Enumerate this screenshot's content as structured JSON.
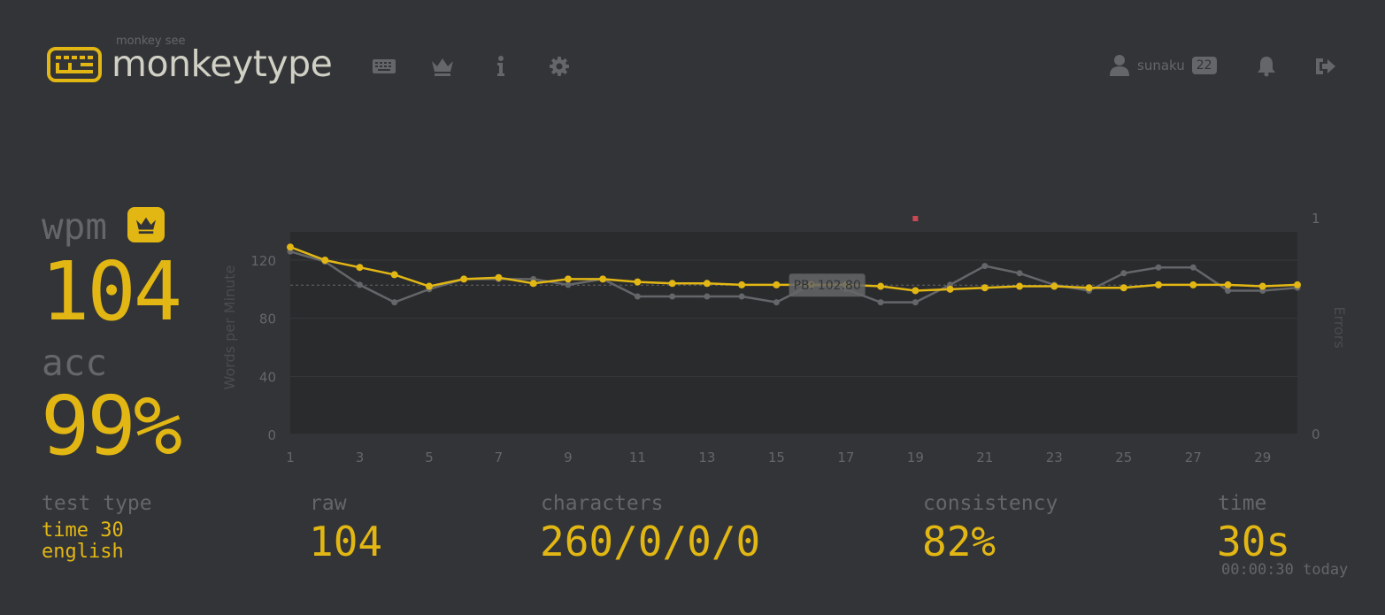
{
  "header": {
    "logo_small": "monkey see",
    "logo_text": "monkeytype",
    "nav": [
      "keyboard-icon",
      "crown-icon",
      "info-icon",
      "gear-icon"
    ],
    "account": {
      "name": "sunaku",
      "level": "22"
    },
    "bell_icon": "bell-icon",
    "logout_icon": "sign-out-icon"
  },
  "result": {
    "wpm_label": "wpm",
    "wpm_value": "104",
    "acc_label": "acc",
    "acc_value": "99%",
    "test_type_label": "test type",
    "test_type_mode": "time 30",
    "test_type_language": "english",
    "raw_label": "raw",
    "raw_value": "104",
    "characters_label": "characters",
    "characters_value": "260/0/0/0",
    "consistency_label": "consistency",
    "consistency_value": "82%",
    "time_label": "time",
    "time_value": "30s",
    "time_note": "00:00:30 today"
  },
  "colors": {
    "bg": "#323437",
    "main": "#e2b714",
    "sub": "#646669",
    "text": "#d1d0c5",
    "error": "#ca4754"
  },
  "chart_data": {
    "type": "line",
    "x": [
      1,
      2,
      3,
      4,
      5,
      6,
      7,
      8,
      9,
      10,
      11,
      12,
      13,
      14,
      15,
      16,
      17,
      18,
      19,
      20,
      21,
      22,
      23,
      24,
      25,
      26,
      27,
      28,
      29,
      30
    ],
    "xticks": [
      1,
      3,
      5,
      7,
      9,
      11,
      13,
      15,
      17,
      19,
      21,
      23,
      25,
      27,
      29
    ],
    "xlim": [
      1,
      30
    ],
    "ylabel": "Words per Minute",
    "ylim": [
      0,
      120
    ],
    "yticks": [
      0,
      40,
      80,
      120
    ],
    "y2label": "Errors",
    "y2ticks": [
      0,
      1
    ],
    "series": [
      {
        "name": "wpm",
        "color": "#e2b714",
        "values": [
          129,
          120,
          115,
          110,
          102,
          107,
          108,
          104,
          107,
          107,
          105,
          104,
          104,
          103,
          103,
          103,
          103,
          102,
          99,
          100,
          101,
          102,
          102,
          101,
          101,
          103,
          103,
          103,
          102,
          103
        ]
      },
      {
        "name": "raw",
        "color": "#646669",
        "values": [
          126,
          119,
          103,
          91,
          100,
          107,
          107,
          107,
          103,
          107,
          95,
          95,
          95,
          95,
          91,
          103,
          100,
          91,
          91,
          103,
          116,
          111,
          103,
          99,
          111,
          115,
          115,
          99,
          99,
          101
        ]
      }
    ],
    "errors": [
      {
        "x": 19,
        "y": 1
      }
    ],
    "pb": {
      "label": "PB: 102.80",
      "value": 102.8
    }
  }
}
